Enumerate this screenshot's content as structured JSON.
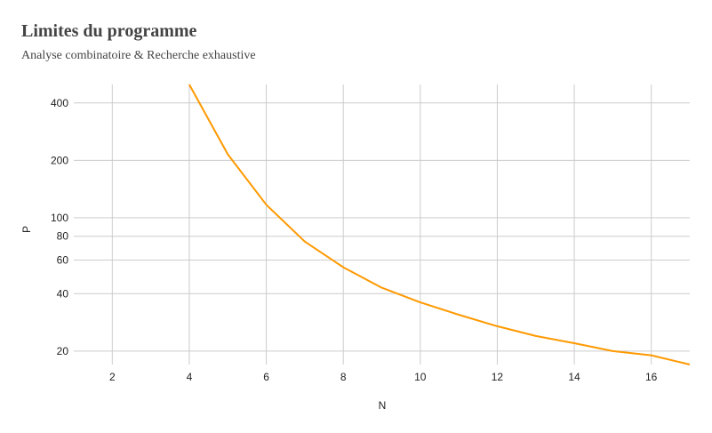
{
  "chart_data": {
    "type": "line",
    "title": "Limites du programme",
    "subtitle": "Analyse combinatoire & Recherche exhaustive",
    "xlabel": "N",
    "ylabel": "P",
    "x_scale": "linear",
    "y_scale": "log",
    "xlim": [
      1,
      17
    ],
    "ylim": [
      17,
      500
    ],
    "x_ticks": [
      2,
      4,
      6,
      8,
      10,
      12,
      14,
      16
    ],
    "y_ticks": [
      20,
      40,
      60,
      80,
      100,
      200,
      400
    ],
    "x_tick_labels": [
      "2",
      "4",
      "6",
      "8",
      "10",
      "12",
      "14",
      "16"
    ],
    "y_tick_labels": [
      "20",
      "40",
      "60",
      "80",
      "100",
      "200",
      "400"
    ],
    "grid": true,
    "series": [
      {
        "color": "#ff9900",
        "x": [
          4,
          5,
          6,
          7,
          8,
          9,
          10,
          11,
          12,
          13,
          14,
          15,
          16,
          17
        ],
        "y": [
          500,
          215,
          117,
          75,
          55,
          43,
          36,
          31,
          27,
          24,
          22,
          20,
          19,
          17
        ]
      }
    ]
  }
}
